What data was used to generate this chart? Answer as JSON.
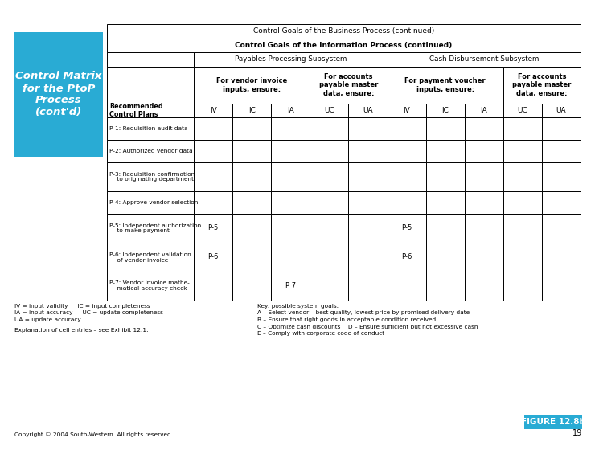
{
  "title_box_text": "Control Matrix\nfor the PtoP\nProcess\n(cont'd)",
  "title_box_color": "#29ABD4",
  "title_text_color": "#FFFFFF",
  "header1": "Control Goals of the Business Process (continued)",
  "header2": "Control Goals of the Information Process (continued)",
  "subsystem1": "Payables Processing Subsystem",
  "subsystem2": "Cash Disbursement Subsystem",
  "col_group1_label1": "For vendor invoice\ninputs, ensure:",
  "col_group1_label2": "For accounts\npayable master\ndata, ensure:",
  "col_group2_label1": "For payment voucher\ninputs, ensure:",
  "col_group2_label2": "For accounts\npayable master\ndata, ensure:",
  "col_headers": [
    "IV",
    "IC",
    "IA",
    "UC",
    "UA",
    "IV",
    "IC",
    "IA",
    "UC",
    "UA"
  ],
  "row_label_header": "Recommended\nControl Plans",
  "rows": [
    {
      "label": "P-1: Requisition audit data",
      "cells": [
        "",
        "",
        "",
        "",
        "",
        "",
        "",
        "",
        "",
        ""
      ]
    },
    {
      "label": "P-2: Authorized vendor data",
      "cells": [
        "",
        "",
        "",
        "",
        "",
        "",
        "",
        "",
        "",
        ""
      ]
    },
    {
      "label": "P-3: Requisition confirmation\n    to originating department",
      "cells": [
        "",
        "",
        "",
        "",
        "",
        "",
        "",
        "",
        "",
        ""
      ]
    },
    {
      "label": "P-4: Approve vendor selection",
      "cells": [
        "",
        "",
        "",
        "",
        "",
        "",
        "",
        "",
        "",
        ""
      ]
    },
    {
      "label": "P-5: Independent authorization\n    to make payment",
      "cells": [
        "P-5",
        "",
        "",
        "",
        "",
        "P-5",
        "",
        "",
        "",
        ""
      ]
    },
    {
      "label": "P-6: Independent validation\n    of vendor invoice",
      "cells": [
        "P-6",
        "",
        "",
        "",
        "",
        "P-6",
        "",
        "",
        "",
        ""
      ]
    },
    {
      "label": "P-7: Vendor invoice mathe-\n    matical accuracy check",
      "cells": [
        "",
        "",
        "P 7",
        "",
        "",
        "",
        "",
        "",
        "",
        ""
      ]
    }
  ],
  "footer_left_lines": [
    "IV = input validity     IC = input completeness",
    "IA = input accuracy     UC = update completeness",
    "UA = update accuracy"
  ],
  "footer_left_lines2": [
    "Explanation of cell entries – see Exhibit 12.1."
  ],
  "footer_right_lines": [
    "Key: possible system goals:",
    "A – Select vendor – best quality, lowest price by promised delivery date",
    "B – Ensure that right goods in acceptable condition received",
    "C – Optimize cash discounts    D – Ensure sufficient but not excessive cash",
    "E – Comply with corporate code of conduct"
  ],
  "figure_label": "FIGURE 12.8b",
  "figure_label_color": "#29ABD4",
  "copyright": "Copyright © 2004 South-Western. All rights reserved.",
  "page_number": "19",
  "bg_color": "#FFFFFF"
}
